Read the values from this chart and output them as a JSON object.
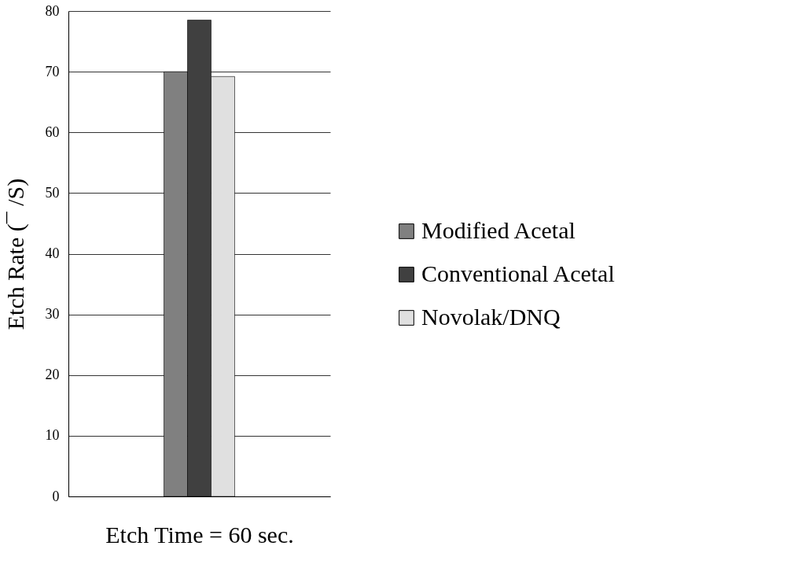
{
  "chart_data": {
    "type": "bar",
    "xlabel": "Etch Time = 60 sec.",
    "ylabel": "Etch Rate (¯ /S)",
    "categories": [
      null
    ],
    "series": [
      {
        "name": "Modified Acetal",
        "color": "#808080",
        "values": [
          70
        ]
      },
      {
        "name": "Conventional Acetal",
        "color": "#404040",
        "values": [
          78.5
        ]
      },
      {
        "name": "Novolak/DNQ",
        "color": "#e0e0e0",
        "values": [
          69.2
        ]
      }
    ],
    "ylim": [
      0,
      80
    ],
    "yticks": [
      0,
      10,
      20,
      30,
      40,
      50,
      60,
      70,
      80
    ],
    "grid": "y",
    "legend": "right"
  }
}
